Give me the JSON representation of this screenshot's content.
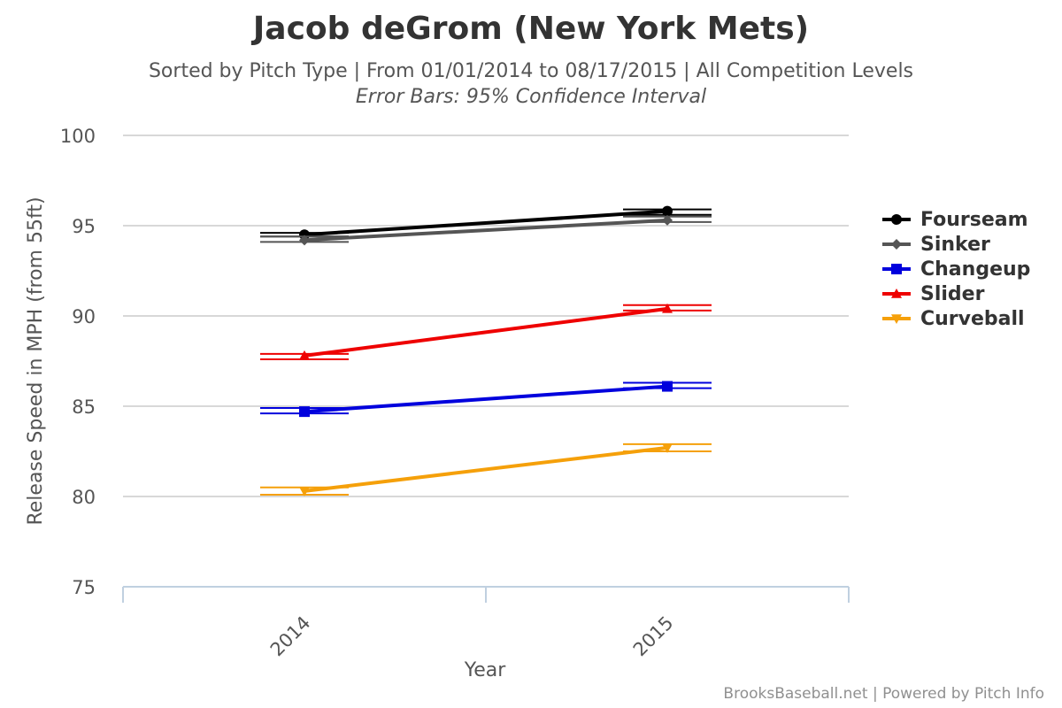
{
  "chart_data": {
    "type": "line",
    "title": "Jacob deGrom (New York Mets)",
    "subtitle": "Sorted by Pitch Type | From 01/01/2014 to 08/17/2015 | All Competition Levels",
    "subtitle2": "Error Bars: 95% Confidence Interval",
    "xlabel": "Year",
    "ylabel": "Release Speed in MPH (from 55ft)",
    "categories": [
      "2014",
      "2015"
    ],
    "ylim": [
      75,
      100
    ],
    "yticks": [
      75,
      80,
      85,
      90,
      95,
      100
    ],
    "grid": true,
    "legend_position": "right",
    "series": [
      {
        "name": "Fourseam",
        "color": "#000000",
        "marker": "circle",
        "values": [
          94.5,
          95.8
        ],
        "error_low": [
          94.4,
          95.6
        ],
        "error_high": [
          94.6,
          95.9
        ]
      },
      {
        "name": "Sinker",
        "color": "#555555",
        "marker": "diamond",
        "values": [
          94.2,
          95.3
        ],
        "error_low": [
          94.1,
          95.2
        ],
        "error_high": [
          94.4,
          95.5
        ]
      },
      {
        "name": "Changeup",
        "color": "#0000dd",
        "marker": "square",
        "values": [
          84.7,
          86.1
        ],
        "error_low": [
          84.6,
          86.0
        ],
        "error_high": [
          84.9,
          86.3
        ]
      },
      {
        "name": "Slider",
        "color": "#ee0000",
        "marker": "triangle",
        "values": [
          87.8,
          90.4
        ],
        "error_low": [
          87.6,
          90.3
        ],
        "error_high": [
          87.9,
          90.6
        ]
      },
      {
        "name": "Curveball",
        "color": "#f5a00a",
        "marker": "triangle-down",
        "values": [
          80.3,
          82.7
        ],
        "error_low": [
          80.1,
          82.5
        ],
        "error_high": [
          80.5,
          82.9
        ]
      }
    ]
  },
  "credits": "BrooksBaseball.net | Powered by Pitch Info"
}
